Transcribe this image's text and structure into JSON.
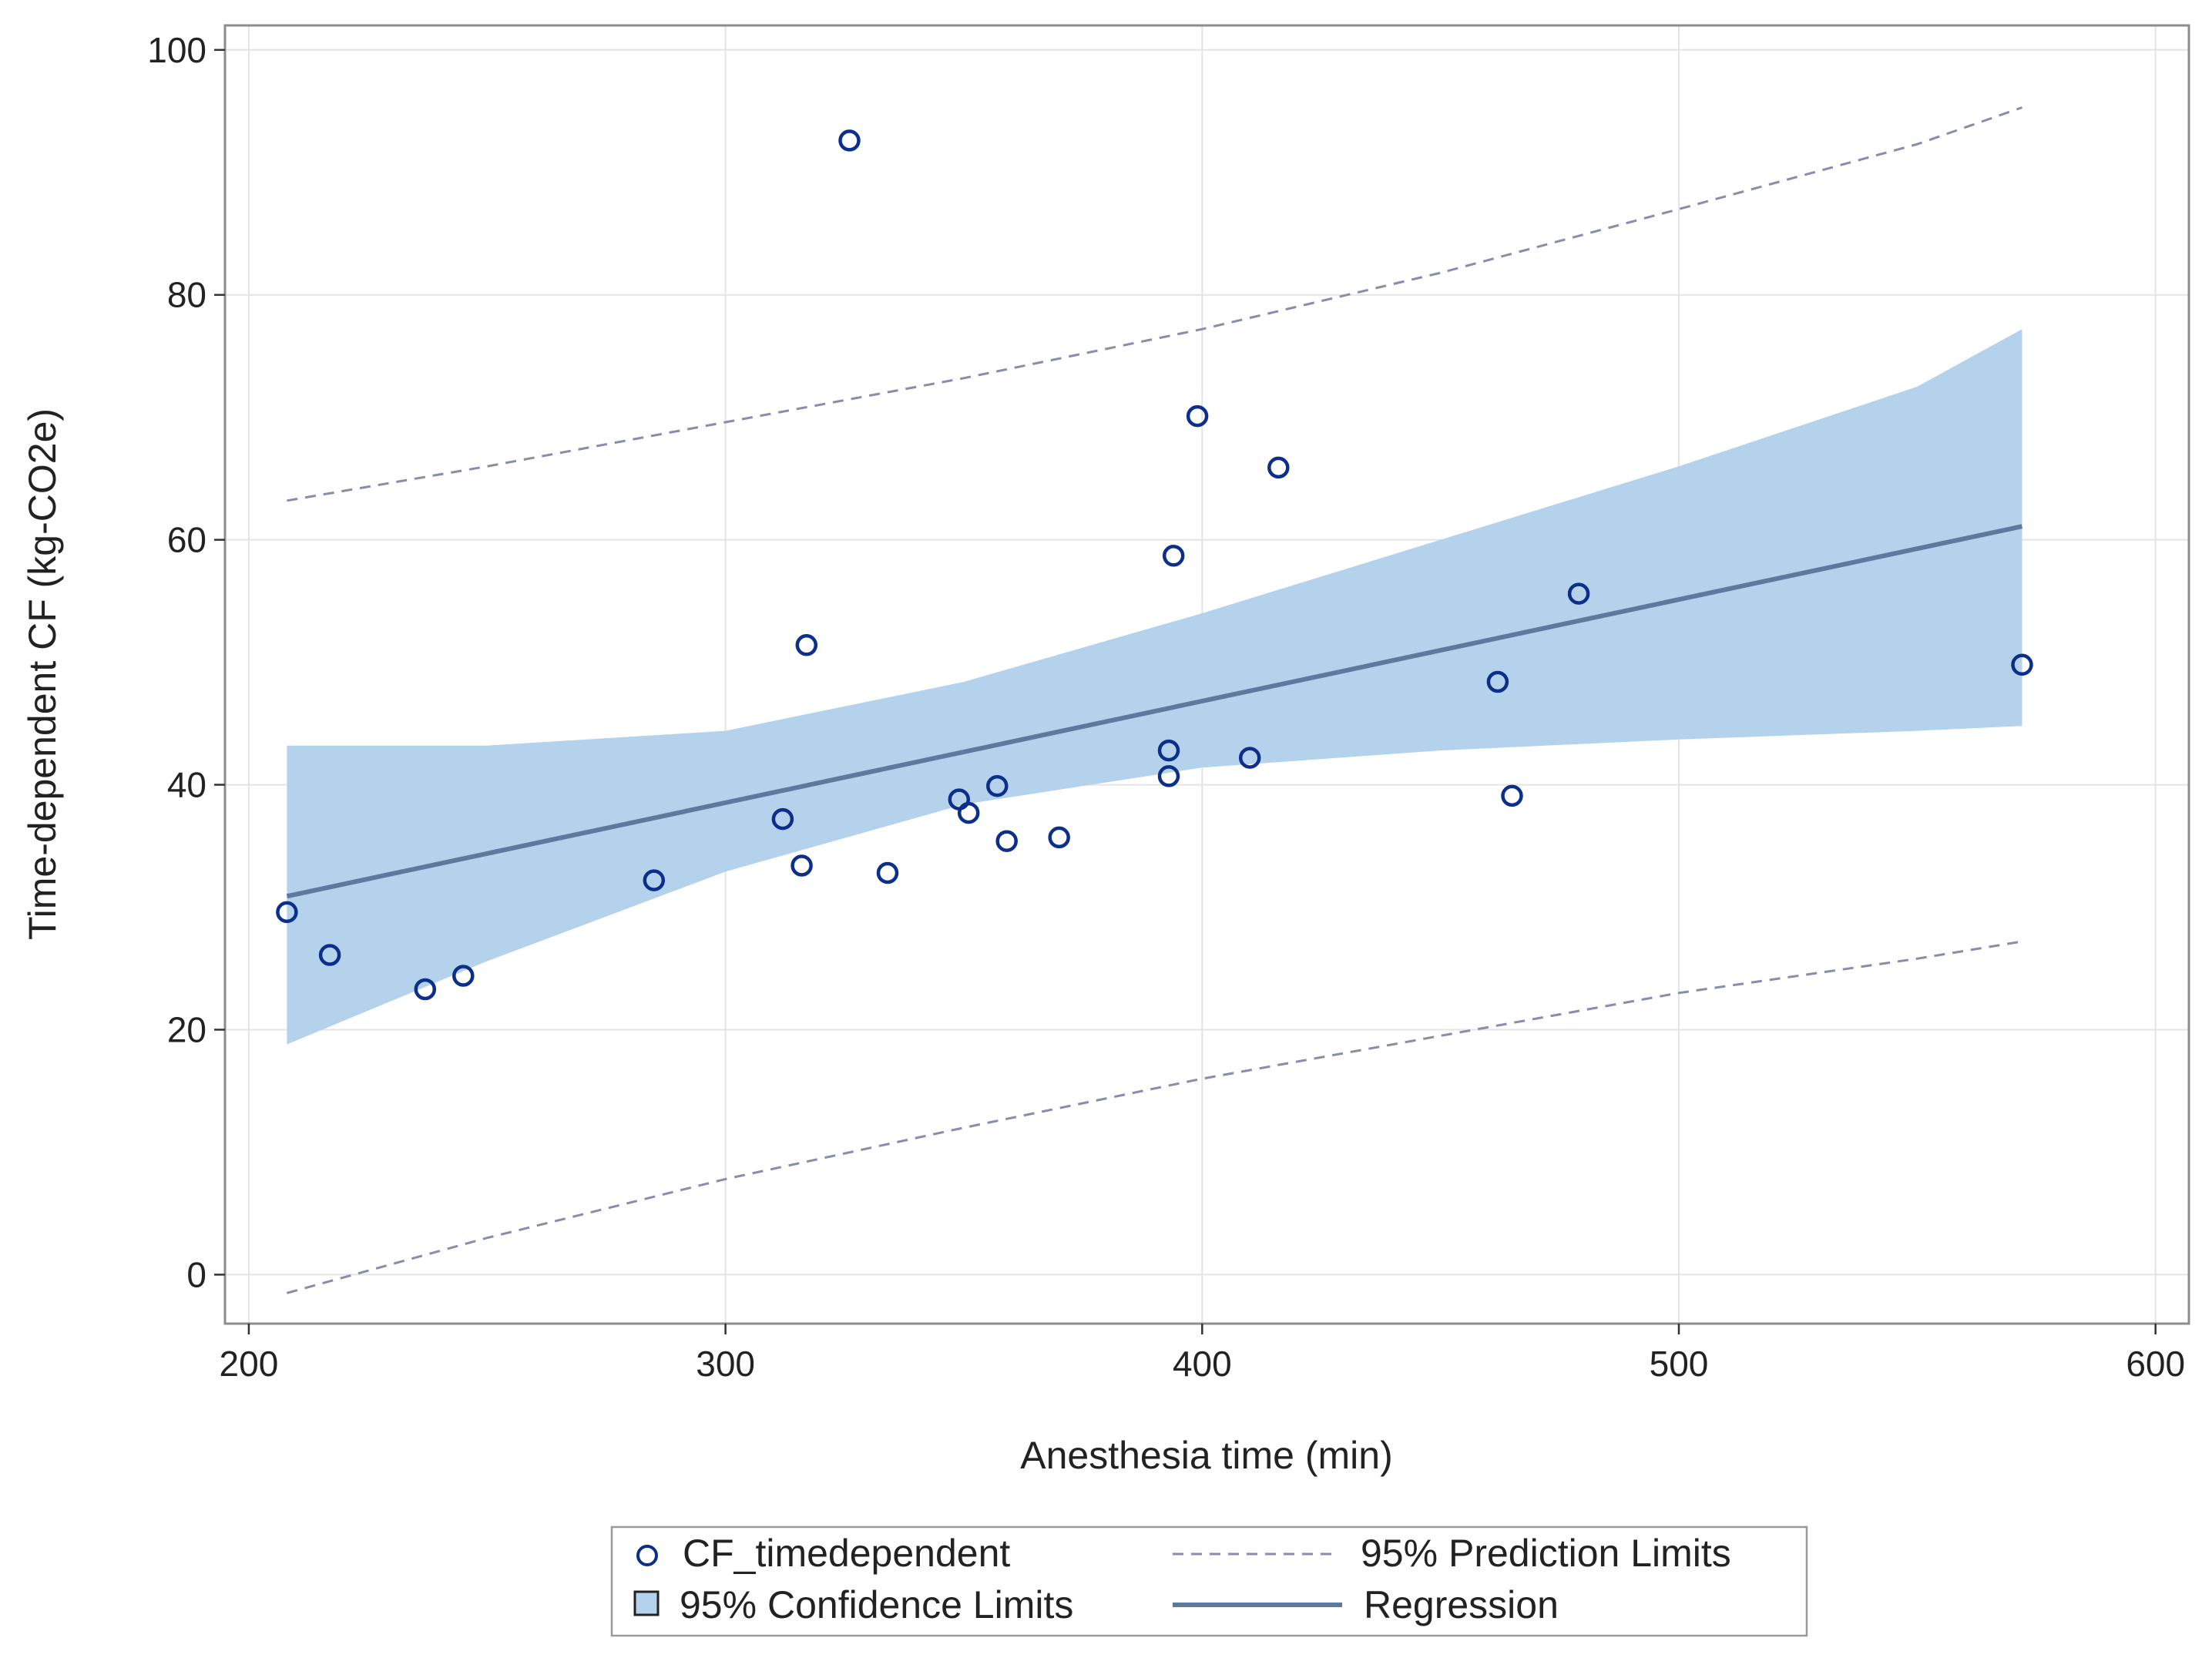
{
  "chart_data": {
    "type": "scatter",
    "title": "",
    "xlabel": "Anesthesia time (min)",
    "ylabel": "Time-dependent CF (kg-CO2e)",
    "xlim": [
      195,
      607
    ],
    "ylim": [
      -4,
      102
    ],
    "x_ticks": [
      200,
      300,
      400,
      500,
      600
    ],
    "y_ticks": [
      0,
      20,
      40,
      60,
      80,
      100
    ],
    "grid": true,
    "legend_position": "bottom",
    "series": [
      {
        "name": "CF_timedependent",
        "kind": "scatter",
        "points": [
          [
            208,
            29.6
          ],
          [
            217,
            26.1
          ],
          [
            237,
            23.3
          ],
          [
            245,
            24.4
          ],
          [
            285,
            32.2
          ],
          [
            312,
            37.2
          ],
          [
            316,
            33.4
          ],
          [
            317,
            51.4
          ],
          [
            326,
            92.6
          ],
          [
            334,
            32.8
          ],
          [
            349,
            38.8
          ],
          [
            351,
            37.7
          ],
          [
            357,
            39.9
          ],
          [
            359,
            35.4
          ],
          [
            370,
            35.7
          ],
          [
            393,
            40.7
          ],
          [
            393,
            42.8
          ],
          [
            394,
            58.7
          ],
          [
            399,
            70.1
          ],
          [
            410,
            42.2
          ],
          [
            416,
            65.9
          ],
          [
            462,
            48.4
          ],
          [
            465,
            39.1
          ],
          [
            479,
            55.6
          ],
          [
            572,
            49.8
          ]
        ]
      },
      {
        "name": "Regression",
        "kind": "line",
        "x": [
          208,
          572
        ],
        "y": [
          30.9,
          61.1
        ]
      },
      {
        "name": "95% Confidence Limits",
        "kind": "band",
        "x": [
          208,
          250,
          300,
          350,
          400,
          450,
          500,
          550,
          572
        ],
        "lower": [
          18.8,
          25.6,
          32.9,
          38.4,
          41.4,
          42.8,
          43.7,
          44.4,
          44.8
        ],
        "upper": [
          43.2,
          43.2,
          44.4,
          48.4,
          54.0,
          60.0,
          66.0,
          72.5,
          77.2
        ]
      },
      {
        "name": "95% Prediction Limits",
        "kind": "dashed",
        "x": [
          208,
          250,
          300,
          350,
          400,
          450,
          500,
          550,
          572
        ],
        "lower": [
          -1.5,
          3.0,
          7.8,
          12.0,
          16.0,
          19.5,
          23.0,
          25.8,
          27.2
        ],
        "upper": [
          63.2,
          66.0,
          69.6,
          73.2,
          77.2,
          81.8,
          87.0,
          92.3,
          95.3
        ]
      }
    ],
    "legend": {
      "items": [
        {
          "label": "CF_timedependent",
          "symbol": "circle"
        },
        {
          "label": "95% Prediction Limits",
          "symbol": "dashed-line"
        },
        {
          "label": "95% Confidence Limits",
          "symbol": "band"
        },
        {
          "label": "Regression",
          "symbol": "solid-line"
        }
      ]
    },
    "colors": {
      "marker": "#0b2f8a",
      "regression": "#5c7a9e",
      "band": "#b5d2ec",
      "prediction": "#8a8cab",
      "grid": "#e4e4e4",
      "frame": "#8c8c8c"
    }
  }
}
